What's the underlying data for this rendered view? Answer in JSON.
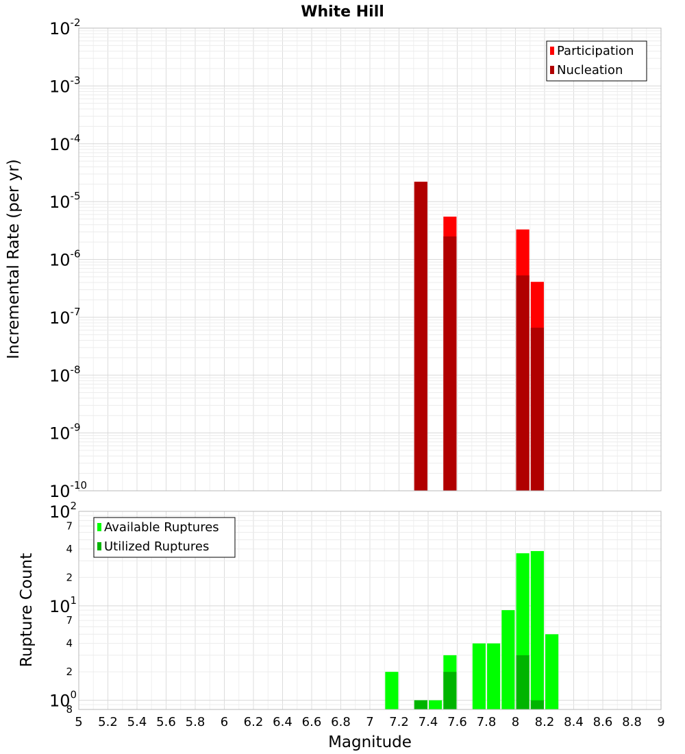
{
  "chart_data": [
    {
      "type": "bar",
      "title": "White Hill",
      "ylabel": "Incremental Rate (per yr)",
      "xlabel": "",
      "xlim": [
        5,
        9
      ],
      "ylim": [
        1e-10,
        0.01
      ],
      "yscale": "log",
      "grid": true,
      "legend_position": "top-right",
      "bar_width": 0.09,
      "series": [
        {
          "name": "Participation",
          "color": "#ff0000",
          "points": [
            {
              "x": 7.35,
              "y": 2.2e-05
            },
            {
              "x": 7.55,
              "y": 5.5e-06
            },
            {
              "x": 8.05,
              "y": 3.3e-06
            },
            {
              "x": 8.15,
              "y": 4.1e-07
            }
          ]
        },
        {
          "name": "Nucleation",
          "color": "#b00000",
          "points": [
            {
              "x": 7.35,
              "y": 2.2e-05
            },
            {
              "x": 7.55,
              "y": 2.5e-06
            },
            {
              "x": 8.05,
              "y": 5.3e-07
            },
            {
              "x": 8.15,
              "y": 6.6e-08
            }
          ]
        }
      ],
      "y_ticks": [
        {
          "base": "10",
          "exp": "-2",
          "value": 0.01
        },
        {
          "base": "10",
          "exp": "-3",
          "value": 0.001
        },
        {
          "base": "10",
          "exp": "-4",
          "value": 0.0001
        },
        {
          "base": "10",
          "exp": "-5",
          "value": 1e-05
        },
        {
          "base": "10",
          "exp": "-6",
          "value": 1e-06
        },
        {
          "base": "10",
          "exp": "-7",
          "value": 1e-07
        },
        {
          "base": "10",
          "exp": "-8",
          "value": 1e-08
        },
        {
          "base": "10",
          "exp": "-9",
          "value": 1e-09
        },
        {
          "base": "10",
          "exp": "-10",
          "value": 1e-10
        }
      ]
    },
    {
      "type": "bar",
      "title": "",
      "ylabel": "Rupture Count",
      "xlabel": "Magnitude",
      "xlim": [
        5,
        9
      ],
      "ylim": [
        0.8,
        100
      ],
      "yscale": "log",
      "grid": true,
      "legend_position": "top-left",
      "bar_width": 0.09,
      "series": [
        {
          "name": "Available Ruptures",
          "color": "#00ff00",
          "points": [
            {
              "x": 7.15,
              "y": 2
            },
            {
              "x": 7.35,
              "y": 1
            },
            {
              "x": 7.45,
              "y": 1
            },
            {
              "x": 7.55,
              "y": 3
            },
            {
              "x": 7.75,
              "y": 4
            },
            {
              "x": 7.85,
              "y": 4
            },
            {
              "x": 7.95,
              "y": 9
            },
            {
              "x": 8.05,
              "y": 36
            },
            {
              "x": 8.15,
              "y": 38
            },
            {
              "x": 8.25,
              "y": 5
            }
          ]
        },
        {
          "name": "Utilized Ruptures",
          "color": "#00b400",
          "points": [
            {
              "x": 7.35,
              "y": 1
            },
            {
              "x": 7.55,
              "y": 2
            },
            {
              "x": 8.05,
              "y": 3
            },
            {
              "x": 8.15,
              "y": 1
            }
          ]
        }
      ],
      "y_ticks": [
        {
          "base": "10",
          "exp": "2",
          "value": 100
        },
        {
          "base": "10",
          "exp": "1",
          "value": 10
        },
        {
          "base": "10",
          "exp": "0",
          "value": 1
        }
      ],
      "y_minor_labels": [
        {
          "label": "7",
          "value": 70
        },
        {
          "label": "4",
          "value": 40
        },
        {
          "label": "2",
          "value": 20
        },
        {
          "label": "7",
          "value": 7
        },
        {
          "label": "4",
          "value": 4
        },
        {
          "label": "2",
          "value": 2
        },
        {
          "label": "8",
          "value": 0.8
        }
      ],
      "x_ticks": [
        "5",
        "5.2",
        "5.4",
        "5.6",
        "5.8",
        "6",
        "6.2",
        "6.4",
        "6.6",
        "6.8",
        "7",
        "7.2",
        "7.4",
        "7.6",
        "7.8",
        "8",
        "8.2",
        "8.4",
        "8.6",
        "8.8",
        "9"
      ]
    }
  ]
}
